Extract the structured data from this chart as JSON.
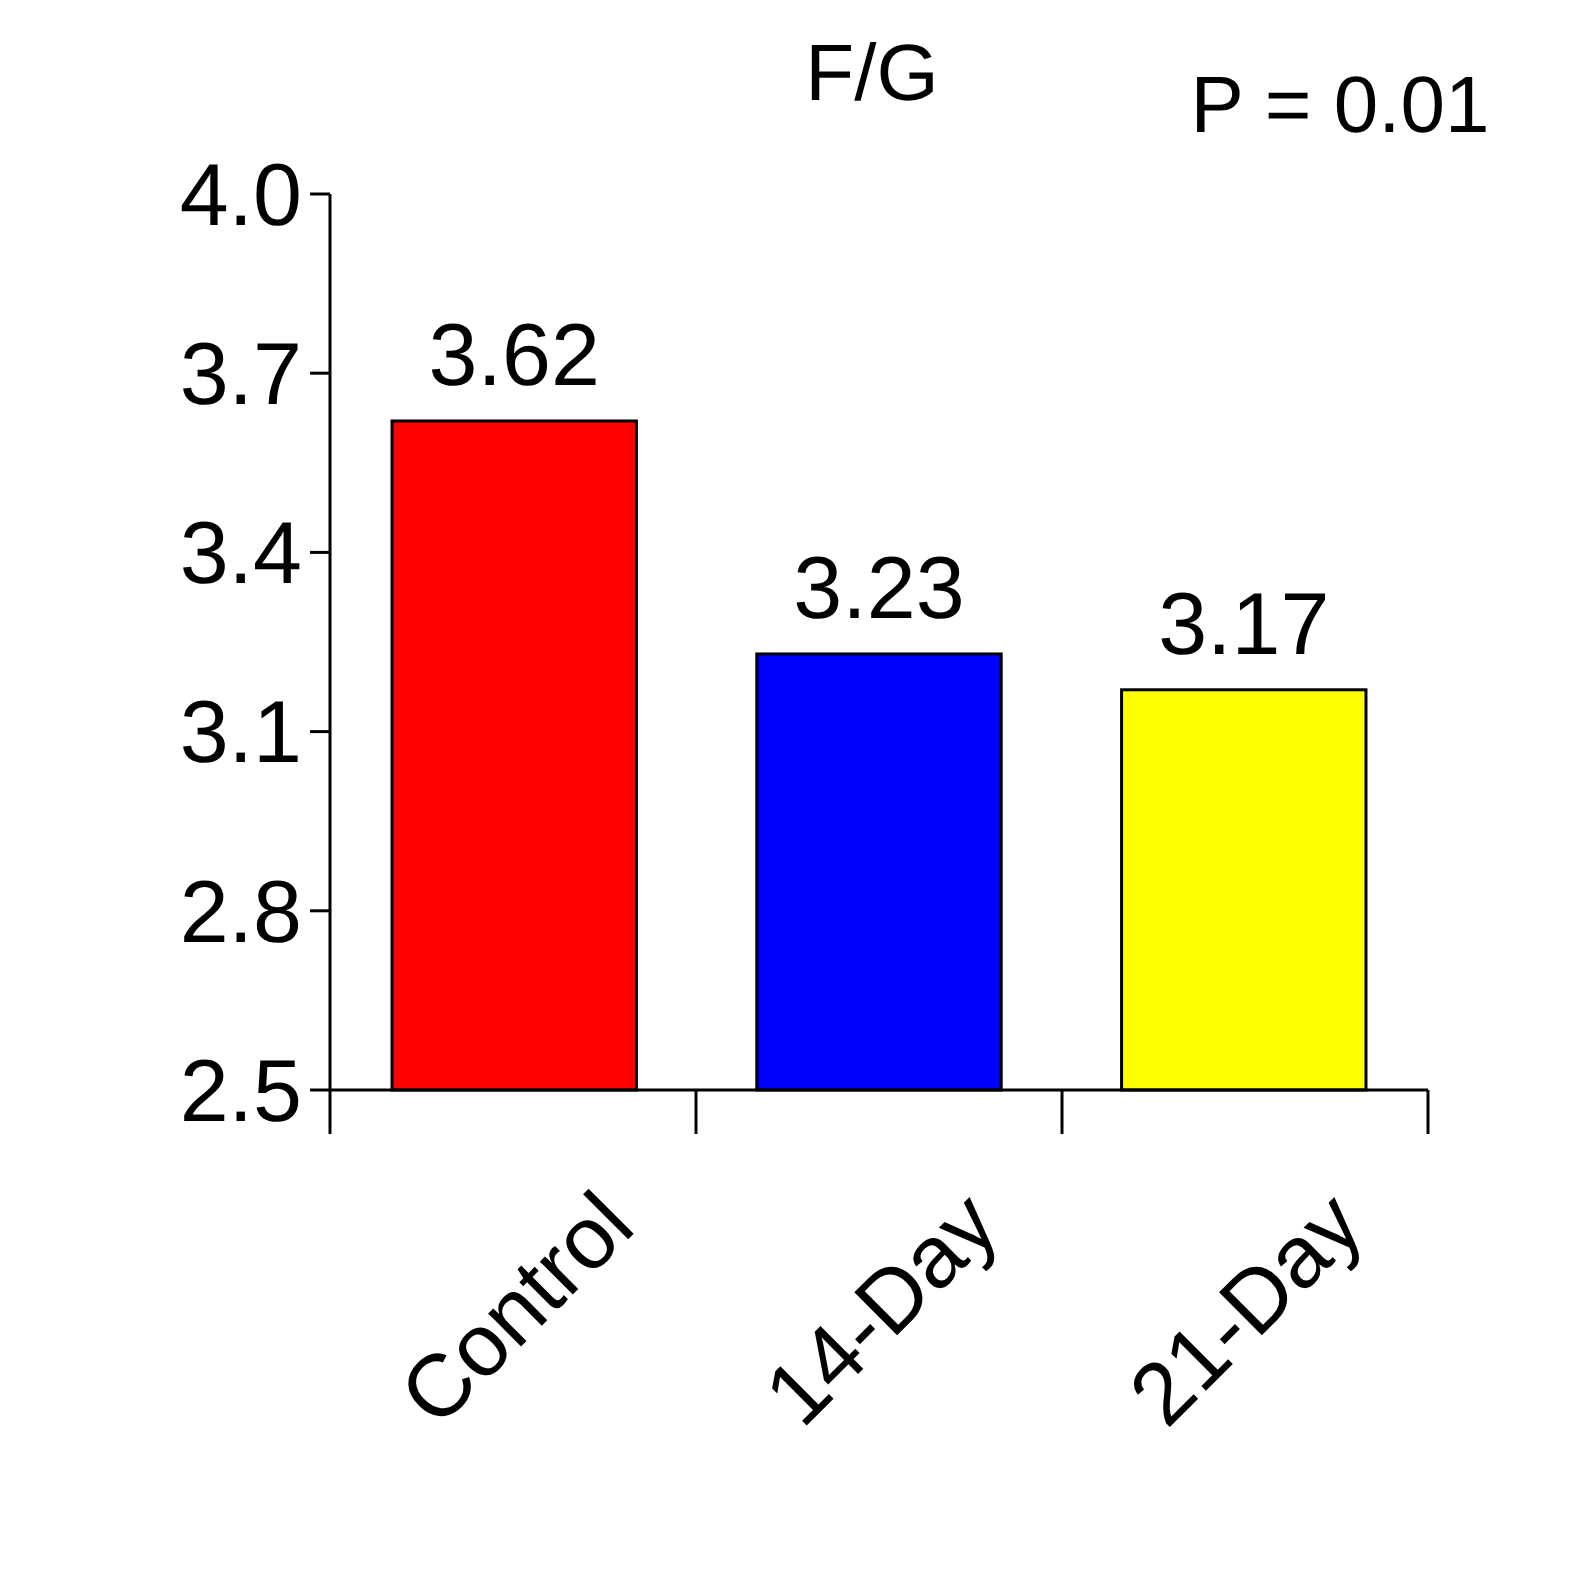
{
  "chart_data": {
    "type": "bar",
    "title": "F/G",
    "annotations": [
      "P = 0.01"
    ],
    "categories": [
      "Control",
      "14-Day",
      "21-Day"
    ],
    "values": [
      3.62,
      3.23,
      3.17
    ],
    "colors": [
      "#ff0000",
      "#0000ff",
      "#ffff00"
    ],
    "ylim": [
      2.5,
      4.0
    ],
    "yticks": [
      2.5,
      2.8,
      3.1,
      3.4,
      3.7,
      {
        "value": 4,
        "label": "4.0"
      }
    ],
    "data_labels": true
  }
}
